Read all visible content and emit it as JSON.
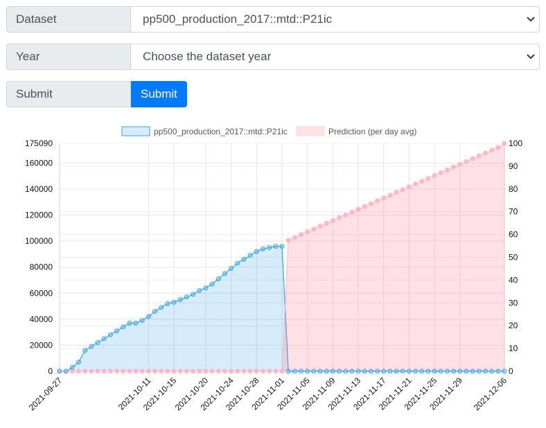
{
  "form": {
    "dataset_label": "Dataset",
    "dataset_value": "pp500_production_2017::mtd::P21ic",
    "year_label": "Year",
    "year_value": "Choose the dataset year",
    "submit_label": "Submit",
    "submit_button": "Submit"
  },
  "colors": {
    "actual_fill": "rgba(54,162,235,0.2)",
    "actual_line": "#36a2eb",
    "prediction_fill": "rgba(255,99,132,0.2)",
    "prediction_line": "#ffb1c1",
    "submit_bg": "#007bff"
  },
  "icons": {
    "dataset_select": "chevron-down-icon",
    "year_select": "chevron-down-icon"
  },
  "chart_data": {
    "type": "area",
    "legend_position": "top",
    "grid": true,
    "x_start": "2021-09-27",
    "x_end": "2021-12-06",
    "x_tick_labels": [
      "2021-09-27",
      "2021-10-11",
      "2021-10-15",
      "2021-10-20",
      "2021-10-24",
      "2021-10-28",
      "2021-11-01",
      "2021-11-05",
      "2021-11-09",
      "2021-11-13",
      "2021-11-17",
      "2021-11-21",
      "2021-11-25",
      "2021-11-29",
      "2021-12-06"
    ],
    "y_left": {
      "min": 0,
      "max": 175090,
      "ticks": [
        0,
        20000,
        40000,
        60000,
        80000,
        100000,
        120000,
        140000,
        160000,
        175090
      ]
    },
    "y_right": {
      "min": 0,
      "max": 100,
      "ticks": [
        0,
        10,
        20,
        30,
        40,
        50,
        60,
        70,
        80,
        90,
        100
      ]
    },
    "series": [
      {
        "name": "pp500_production_2017::mtd::P21ic",
        "axis": "left",
        "values": [
          0,
          0,
          3000,
          7000,
          16000,
          19000,
          22000,
          25000,
          28000,
          31000,
          34000,
          37000,
          37000,
          39000,
          42000,
          46000,
          49000,
          52000,
          53000,
          55000,
          57000,
          59000,
          62000,
          64000,
          67000,
          71000,
          75000,
          79000,
          83000,
          86000,
          89000,
          92000,
          94000,
          95000,
          96000,
          96000,
          0,
          0,
          0,
          0,
          0,
          0,
          0,
          0,
          0,
          0,
          0,
          0,
          0,
          0,
          0,
          0,
          0,
          0,
          0,
          0,
          0,
          0,
          0,
          0,
          0,
          0,
          0,
          0,
          0,
          0,
          0,
          0,
          0,
          0,
          0
        ]
      },
      {
        "name": "Prediction (per day avg)",
        "axis": "right",
        "values": [
          0,
          0,
          0,
          0,
          0,
          0,
          0,
          0,
          0,
          0,
          0,
          0,
          0,
          0,
          0,
          0,
          0,
          0,
          0,
          0,
          0,
          0,
          0,
          0,
          0,
          0,
          0,
          0,
          0,
          0,
          0,
          0,
          0,
          0,
          0,
          0,
          57.5,
          58.7,
          60,
          61.2,
          62.4,
          63.7,
          64.9,
          66.1,
          67.4,
          68.6,
          69.8,
          71.1,
          72.3,
          73.5,
          74.8,
          76,
          77.2,
          78.5,
          79.7,
          80.9,
          82.2,
          83.4,
          84.6,
          85.9,
          87.1,
          88.3,
          89.6,
          90.8,
          92,
          93.3,
          94.5,
          95.7,
          97,
          98.2,
          100
        ]
      }
    ]
  }
}
